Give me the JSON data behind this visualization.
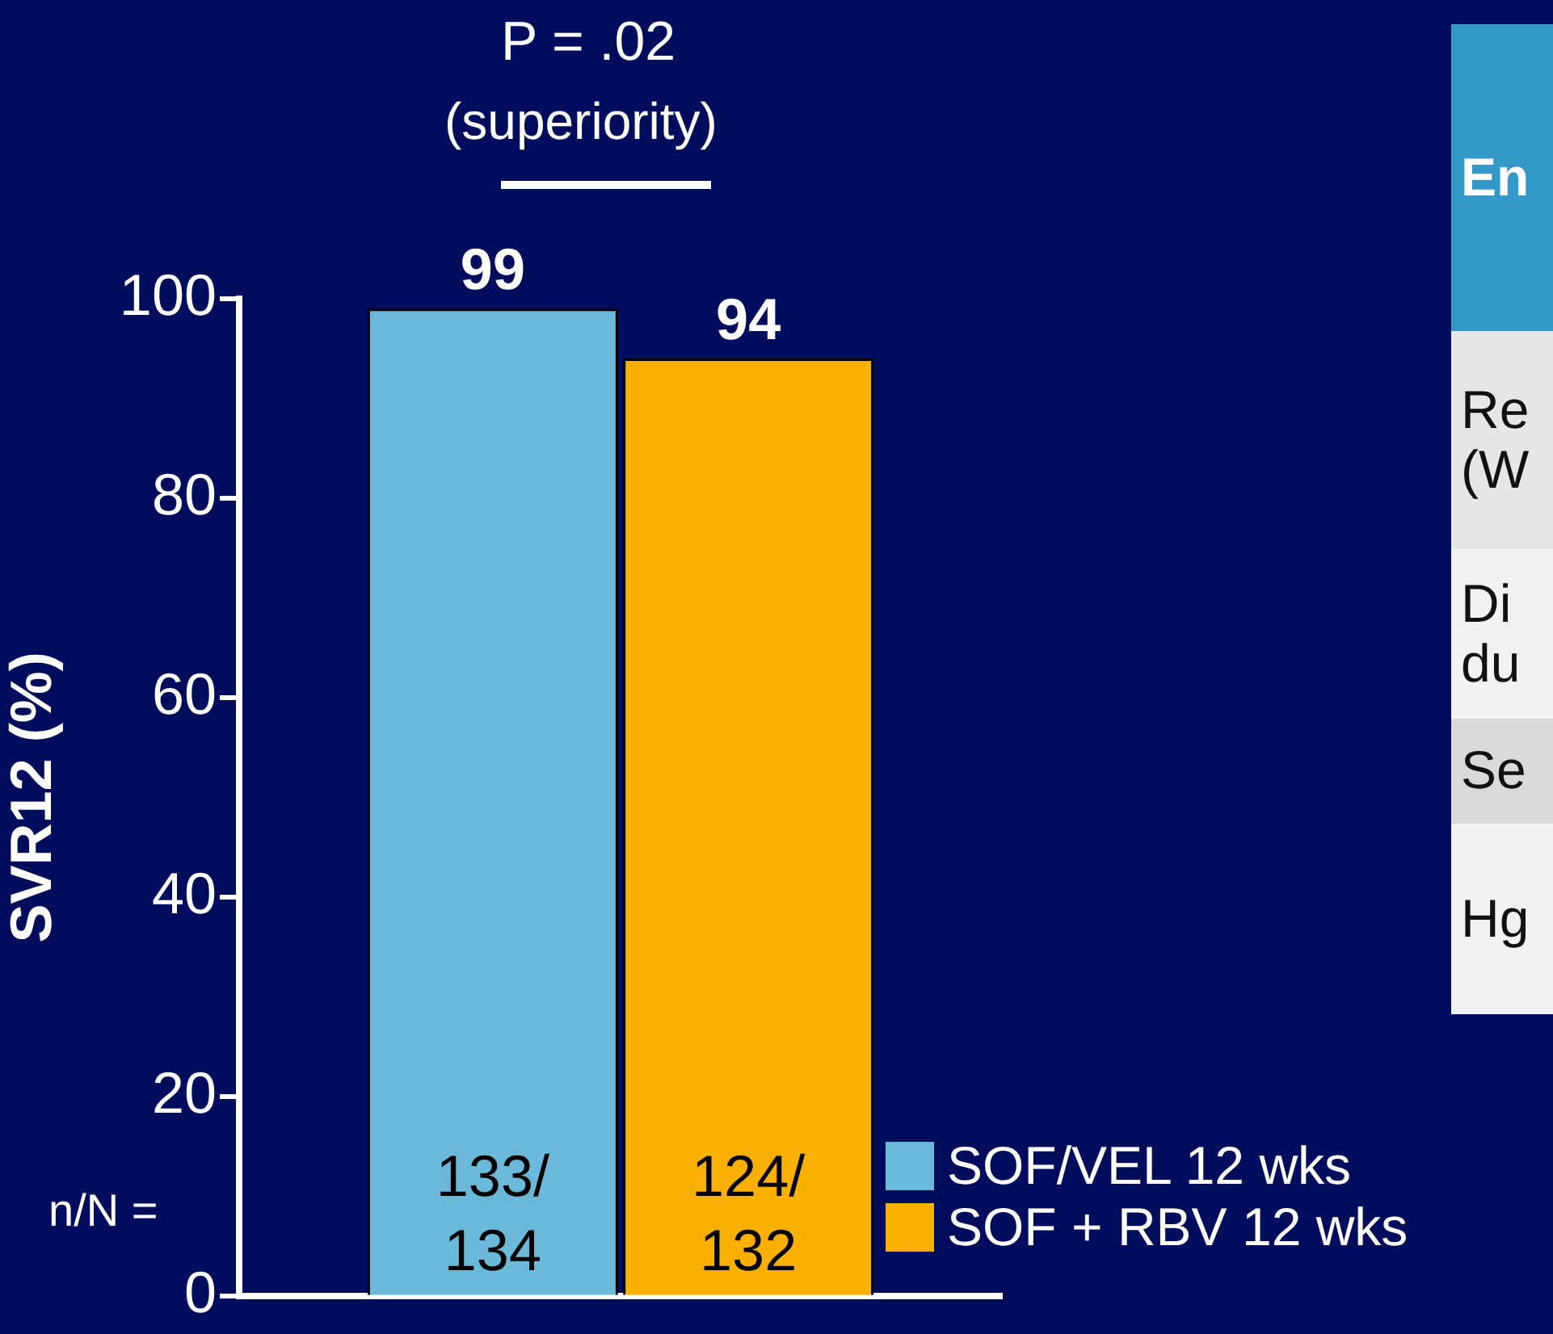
{
  "chart_data": {
    "type": "bar",
    "ylabel": "SVR12 (%)",
    "categories": [
      null
    ],
    "series": [
      {
        "name": "SOF/VEL 12 wks",
        "color": "#6bb9d9",
        "values": [
          99
        ]
      },
      {
        "name": "SOF + RBV 12 wks",
        "color": "#f9b000",
        "values": [
          94
        ]
      }
    ],
    "ylim": [
      0,
      100
    ],
    "yticks": [
      0,
      20,
      40,
      60,
      80,
      100
    ],
    "grid": false,
    "legend": "bottom right",
    "data_labels": true,
    "annotations": [
      "P = .02",
      "(superiority)",
      "n/N =",
      "133/\n134",
      "124/\n132",
      "En",
      "Re\n(W",
      "Di\ndu",
      "Se",
      "Hg"
    ]
  }
}
